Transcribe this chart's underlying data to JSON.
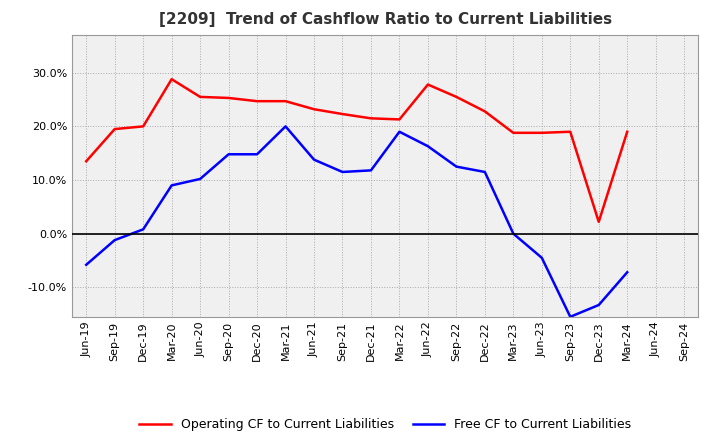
{
  "title": "[2209]  Trend of Cashflow Ratio to Current Liabilities",
  "x_labels": [
    "Jun-19",
    "Sep-19",
    "Dec-19",
    "Mar-20",
    "Jun-20",
    "Sep-20",
    "Dec-20",
    "Mar-21",
    "Jun-21",
    "Sep-21",
    "Dec-21",
    "Mar-22",
    "Jun-22",
    "Sep-22",
    "Dec-22",
    "Mar-23",
    "Jun-23",
    "Sep-23",
    "Dec-23",
    "Mar-24",
    "Jun-24",
    "Sep-24"
  ],
  "operating_cf": [
    0.135,
    0.195,
    0.2,
    0.288,
    0.255,
    0.253,
    0.247,
    0.247,
    0.232,
    0.223,
    0.215,
    0.213,
    0.278,
    0.255,
    0.228,
    0.188,
    0.188,
    0.19,
    0.022,
    0.19,
    null,
    null
  ],
  "free_cf": [
    -0.058,
    -0.012,
    0.008,
    0.09,
    0.102,
    0.148,
    0.148,
    0.2,
    0.138,
    0.115,
    0.118,
    0.19,
    0.163,
    0.125,
    0.115,
    0.0,
    -0.045,
    -0.155,
    -0.133,
    -0.072,
    null,
    null
  ],
  "operating_color": "#ff0000",
  "free_color": "#0000ff",
  "ylim": [
    -0.155,
    0.37
  ],
  "yticks": [
    -0.1,
    0.0,
    0.1,
    0.2,
    0.3
  ],
  "plot_bg_color": "#f0f0f0",
  "fig_bg_color": "#ffffff",
  "grid_color": "#aaaaaa",
  "title_color": "#333333",
  "title_fontsize": 11,
  "legend_fontsize": 9,
  "tick_fontsize": 8
}
